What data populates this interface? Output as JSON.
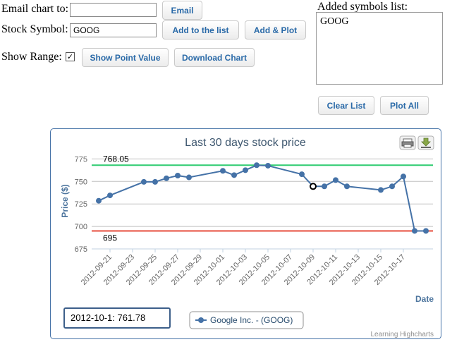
{
  "form": {
    "email_label": "Email chart to:",
    "email_value": "",
    "email_button": "Email",
    "symbol_label": "Stock Symbol:",
    "symbol_value": "GOOG",
    "add_button": "Add to the list",
    "add_plot_button": "Add & Plot",
    "range_label": "Show Range:",
    "range_checked": true,
    "point_value_button": "Show Point Value",
    "download_button": "Download Chart"
  },
  "symbols": {
    "label": "Added symbols list:",
    "items": [
      "GOOG"
    ],
    "clear_button": "Clear List",
    "plot_all_button": "Plot All"
  },
  "chart_widget": {
    "point_readout": "2012-10-1: 761.78",
    "credits": "Learning Highcharts",
    "print_icon": "print-icon",
    "export_icon": "download-icon"
  },
  "chart_data": {
    "type": "line",
    "title": "Last 30 days stock price",
    "xlabel": "Date",
    "ylabel": "Price ($)",
    "ylim": [
      675,
      780
    ],
    "yticks": [
      675,
      700,
      725,
      750,
      775
    ],
    "xticks": [
      "2012-09-21",
      "2012-09-23",
      "2012-09-25",
      "2012-09-27",
      "2012-09-29",
      "2012-10-01",
      "2012-10-03",
      "2012-10-05",
      "2012-10-07",
      "2012-10-09",
      "2012-10-11",
      "2012-10-13",
      "2012-10-15",
      "2012-10-17"
    ],
    "xrange": [
      "2012-09-20",
      "2012-10-19"
    ],
    "series": [
      {
        "name": "Google Inc. - (GOOG)",
        "color": "#4572a7",
        "x": [
          "2012-09-20",
          "2012-09-21",
          "2012-09-24",
          "2012-09-25",
          "2012-09-26",
          "2012-09-27",
          "2012-09-28",
          "2012-10-01",
          "2012-10-02",
          "2012-10-03",
          "2012-10-04",
          "2012-10-05",
          "2012-10-08",
          "2012-10-09",
          "2012-10-10",
          "2012-10-11",
          "2012-10-12",
          "2012-10-15",
          "2012-10-16",
          "2012-10-17",
          "2012-10-18",
          "2012-10-19"
        ],
        "y": [
          728.5,
          734.5,
          749.5,
          749.5,
          753.5,
          756.5,
          754.5,
          761.78,
          757.0,
          762.5,
          768.05,
          767.5,
          758.0,
          744.5,
          744.5,
          751.5,
          744.5,
          740.5,
          744.5,
          755.5,
          695.0,
          695.0
        ]
      }
    ],
    "plot_lines": [
      {
        "label": "768.05",
        "value": 768.05,
        "color": "#2ecc71"
      },
      {
        "label": "695",
        "value": 695,
        "color": "#e74c3c"
      }
    ],
    "highlighted_point": "2012-10-09",
    "legend": "bottom-center",
    "grid": true
  }
}
